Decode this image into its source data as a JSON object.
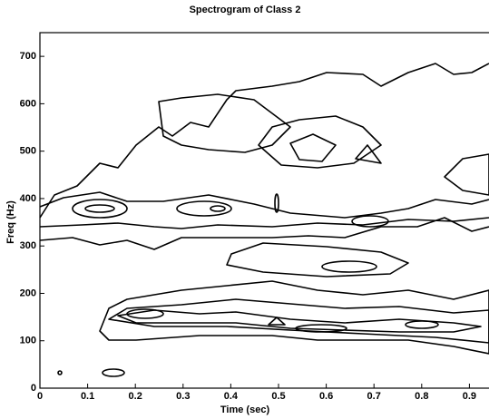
{
  "chart_data": {
    "type": "contour",
    "title": "Spectrogram of Class 2",
    "xlabel": "Time (sec)",
    "ylabel": "Freq (Hz)",
    "xlim": [
      0,
      1
    ],
    "ylim": [
      0,
      750
    ],
    "xticks": [
      0,
      0.1,
      0.2,
      0.3,
      0.4,
      0.5,
      0.6,
      0.7,
      0.8,
      0.9
    ],
    "yticks": [
      0,
      100,
      200,
      300,
      400,
      500,
      600,
      700
    ],
    "color": "#000000"
  }
}
